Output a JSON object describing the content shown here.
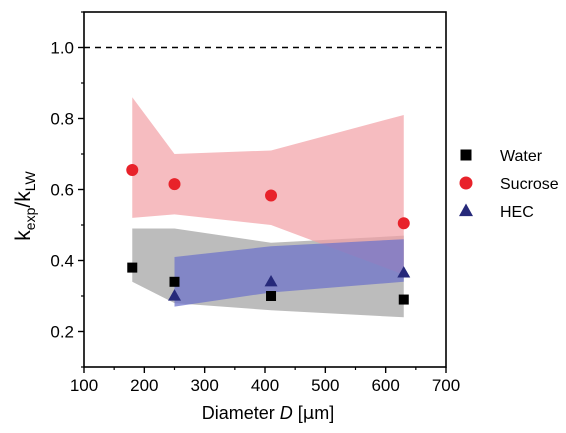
{
  "chart_data": {
    "type": "scatter",
    "xlabel": {
      "prefix": "Diameter ",
      "var": "D",
      "suffix": " [",
      "mu": "μ",
      "unit": "m]"
    },
    "ylabel": {
      "k1": "k",
      "sub1": "exp",
      "slash": "/k",
      "sub2": "LW"
    },
    "xlim": [
      100,
      700
    ],
    "ylim": [
      0.1,
      1.1
    ],
    "xticks": [
      100,
      200,
      300,
      400,
      500,
      600,
      700
    ],
    "xtick_labels": [
      "100",
      "200",
      "300",
      "400",
      "500",
      "600",
      "700"
    ],
    "yticks": [
      0.2,
      0.4,
      0.6,
      0.8,
      1.0
    ],
    "ytick_labels": [
      "0.2",
      "0.4",
      "0.6",
      "0.8",
      "1.0"
    ],
    "reference_line": {
      "y": 1.0,
      "style": "dashed",
      "color": "#000000"
    },
    "legend_position": "right",
    "series": [
      {
        "name": "Water",
        "marker": "square",
        "color": "#000000",
        "band_color": "#a6a6a6",
        "x": [
          180,
          250,
          410,
          630
        ],
        "y": [
          0.38,
          0.34,
          0.3,
          0.29
        ],
        "band_upper": [
          0.49,
          0.49,
          0.45,
          0.47
        ],
        "band_lower": [
          0.34,
          0.28,
          0.26,
          0.24
        ]
      },
      {
        "name": "Sucrose",
        "marker": "circle",
        "color": "#e8222a",
        "band_color": "#f2a0a5",
        "x": [
          180,
          250,
          410,
          630
        ],
        "y": [
          0.655,
          0.615,
          0.583,
          0.505
        ],
        "band_upper": [
          0.86,
          0.7,
          0.71,
          0.81
        ],
        "band_lower": [
          0.52,
          0.53,
          0.5,
          0.36
        ]
      },
      {
        "name": "HEC",
        "marker": "triangle",
        "color": "#26297a",
        "band_color": "#6f74c9",
        "x": [
          250,
          410,
          630
        ],
        "y": [
          0.3,
          0.34,
          0.365
        ],
        "band_upper": [
          0.41,
          0.44,
          0.46
        ],
        "band_lower": [
          0.27,
          0.31,
          0.34
        ]
      }
    ]
  }
}
